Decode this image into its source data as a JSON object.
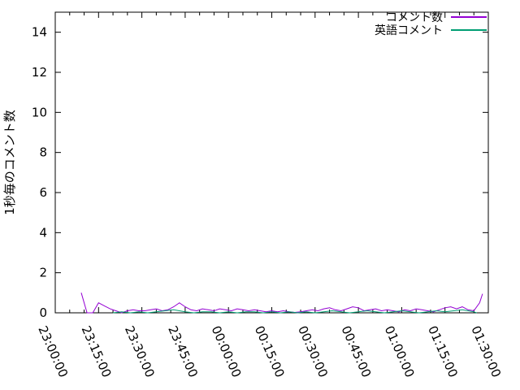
{
  "chart_data": {
    "type": "line",
    "title": "",
    "xlabel": "",
    "ylabel": "1秒毎のコメント数",
    "ylim": [
      0,
      15
    ],
    "ytick_values": [
      0,
      2,
      4,
      6,
      8,
      10,
      12,
      14
    ],
    "x_range_minutes": [
      0,
      150
    ],
    "xtick_minutes": [
      0,
      15,
      30,
      45,
      60,
      75,
      90,
      105,
      120,
      135,
      150
    ],
    "xtick_labels": [
      "23:00:00",
      "23:15:00",
      "23:30:00",
      "23:45:00",
      "00:00:00",
      "00:15:00",
      "00:30:00",
      "00:45:00",
      "01:00:00",
      "01:15:00",
      "01:30:00"
    ],
    "minor_xtick_step_minutes": 5,
    "grid": false,
    "legend_position": "top-right-inside",
    "axis_color": "#000000",
    "background_color": "#ffffff",
    "series": [
      {
        "name": "コメント数",
        "color": "#9400d3",
        "t": [
          9,
          11,
          13,
          15,
          17,
          19,
          21,
          23,
          25,
          27,
          29,
          31,
          33,
          35,
          37,
          39,
          41,
          43,
          45,
          47,
          49,
          51,
          53,
          55,
          57,
          59,
          61,
          63,
          65,
          67,
          69,
          71,
          73,
          75,
          77,
          79,
          81,
          83,
          85,
          87,
          89,
          91,
          93,
          95,
          97,
          99,
          101,
          103,
          105,
          107,
          109,
          111,
          113,
          115,
          117,
          119,
          121,
          123,
          125,
          127,
          129,
          131,
          133,
          135,
          137,
          139,
          141,
          143,
          145,
          147,
          148
        ],
        "v": [
          1,
          0,
          0,
          0.5,
          0.35,
          0.2,
          0.1,
          0,
          0.1,
          0.15,
          0.1,
          0.1,
          0.15,
          0.2,
          0.1,
          0.15,
          0.3,
          0.5,
          0.3,
          0.15,
          0.1,
          0.2,
          0.15,
          0.1,
          0.2,
          0.15,
          0.1,
          0.2,
          0.15,
          0.1,
          0.15,
          0.1,
          0.05,
          0.1,
          0.05,
          0.1,
          0.05,
          0.02,
          0.05,
          0.1,
          0.15,
          0.1,
          0.2,
          0.25,
          0.15,
          0.1,
          0.2,
          0.3,
          0.25,
          0.1,
          0.15,
          0.2,
          0.1,
          0.15,
          0.1,
          0.05,
          0.15,
          0.1,
          0.2,
          0.15,
          0.1,
          0.05,
          0.15,
          0.25,
          0.3,
          0.2,
          0.3,
          0.15,
          0.1,
          0.5,
          0.95
        ]
      },
      {
        "name": "英語コメント",
        "color": "#009e73",
        "t": [
          20,
          23,
          26,
          29,
          32,
          35,
          38,
          41,
          43,
          45,
          48,
          51,
          54,
          57,
          60,
          63,
          66,
          69,
          72,
          75,
          78,
          81,
          84,
          87,
          90,
          93,
          96,
          99,
          102,
          105,
          108,
          111,
          114,
          117,
          120,
          123,
          126,
          129,
          132,
          135,
          138,
          141,
          143,
          145,
          146
        ],
        "v": [
          0,
          0.05,
          0,
          0.05,
          0,
          0.05,
          0.1,
          0.15,
          0.1,
          0.05,
          0,
          0.05,
          0.05,
          0,
          0.05,
          0,
          0.05,
          0.05,
          0,
          0.05,
          0,
          0.05,
          0,
          0.05,
          0,
          0.05,
          0.1,
          0.05,
          0,
          0.05,
          0.1,
          0.05,
          0,
          0.05,
          0.1,
          0.05,
          0,
          0.05,
          0.1,
          0.05,
          0.1,
          0.15,
          0.1,
          0.05,
          0
        ]
      }
    ]
  }
}
